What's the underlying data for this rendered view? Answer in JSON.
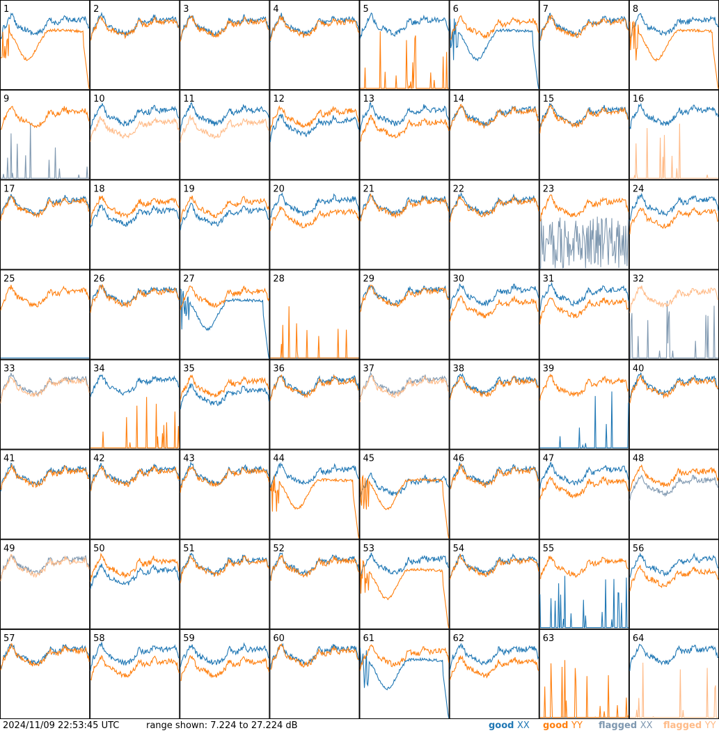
{
  "chart_data": {
    "type": "line",
    "layout": "8x8 small multiples",
    "timestamp": "2024/11/09 22:53:45 UTC",
    "range_label": "range shown: 7.224 to 27.224 dB",
    "ylim": [
      7.224,
      27.224
    ],
    "legend": [
      {
        "word": "good",
        "pol": "XX",
        "color": "#1f77b4"
      },
      {
        "word": "good",
        "pol": "YY",
        "color": "#ff7f0e"
      },
      {
        "word": "flagged",
        "pol": "XX",
        "color": "#7f98b0"
      },
      {
        "word": "flagged",
        "pol": "YY",
        "color": "#ffbb88"
      }
    ],
    "colors": {
      "good_xx": "#1f77b4",
      "good_yy": "#ff7f0e",
      "flagged_xx": "#7f98b0",
      "flagged_yy": "#ffbb88"
    },
    "panels": [
      {
        "label": "1",
        "xx": "good",
        "yy": "good",
        "xx_shape": "normal",
        "yy_shape": "dip"
      },
      {
        "label": "2",
        "xx": "good",
        "yy": "good",
        "xx_shape": "normal",
        "yy_shape": "normal"
      },
      {
        "label": "3",
        "xx": "good",
        "yy": "good",
        "xx_shape": "normal",
        "yy_shape": "normal"
      },
      {
        "label": "4",
        "xx": "good",
        "yy": "good",
        "xx_shape": "normal",
        "yy_shape": "normal"
      },
      {
        "label": "5",
        "xx": "good",
        "yy": "good",
        "xx_shape": "normal",
        "yy_shape": "spikes"
      },
      {
        "label": "6",
        "xx": "good",
        "yy": "good",
        "xx_shape": "dip",
        "yy_shape": "normal"
      },
      {
        "label": "7",
        "xx": "good",
        "yy": "good",
        "xx_shape": "normal",
        "yy_shape": "normal"
      },
      {
        "label": "8",
        "xx": "good",
        "yy": "good",
        "xx_shape": "normal",
        "yy_shape": "dip"
      },
      {
        "label": "9",
        "xx": "flagged",
        "yy": "good",
        "xx_shape": "spikes",
        "yy_shape": "normal"
      },
      {
        "label": "10",
        "xx": "good",
        "yy": "flagged",
        "xx_shape": "normal",
        "yy_shape": "low"
      },
      {
        "label": "11",
        "xx": "good",
        "yy": "flagged",
        "xx_shape": "normal",
        "yy_shape": "low"
      },
      {
        "label": "12",
        "xx": "good",
        "yy": "good",
        "xx_shape": "low",
        "yy_shape": "normal"
      },
      {
        "label": "13",
        "xx": "good",
        "yy": "good",
        "xx_shape": "normal",
        "yy_shape": "low"
      },
      {
        "label": "14",
        "xx": "good",
        "yy": "good",
        "xx_shape": "normal",
        "yy_shape": "normal"
      },
      {
        "label": "15",
        "xx": "good",
        "yy": "good",
        "xx_shape": "normal",
        "yy_shape": "normal"
      },
      {
        "label": "16",
        "xx": "good",
        "yy": "flagged",
        "xx_shape": "normal",
        "yy_shape": "spikes"
      },
      {
        "label": "17",
        "xx": "good",
        "yy": "good",
        "xx_shape": "normal",
        "yy_shape": "normal"
      },
      {
        "label": "18",
        "xx": "good",
        "yy": "good",
        "xx_shape": "low",
        "yy_shape": "normal"
      },
      {
        "label": "19",
        "xx": "good",
        "yy": "good",
        "xx_shape": "low",
        "yy_shape": "normal"
      },
      {
        "label": "20",
        "xx": "good",
        "yy": "good",
        "xx_shape": "normal",
        "yy_shape": "low"
      },
      {
        "label": "21",
        "xx": "good",
        "yy": "good",
        "xx_shape": "normal",
        "yy_shape": "normal"
      },
      {
        "label": "22",
        "xx": "good",
        "yy": "good",
        "xx_shape": "normal",
        "yy_shape": "normal"
      },
      {
        "label": "23",
        "xx": "flagged",
        "yy": "good",
        "xx_shape": "noisy",
        "yy_shape": "normal"
      },
      {
        "label": "24",
        "xx": "good",
        "yy": "good",
        "xx_shape": "normal",
        "yy_shape": "low"
      },
      {
        "label": "25",
        "xx": "good",
        "yy": "good",
        "xx_shape": "flat",
        "yy_shape": "normal"
      },
      {
        "label": "26",
        "xx": "good",
        "yy": "good",
        "xx_shape": "normal",
        "yy_shape": "normal"
      },
      {
        "label": "27",
        "xx": "good",
        "yy": "good",
        "xx_shape": "dip",
        "yy_shape": "normal"
      },
      {
        "label": "28",
        "xx": "good",
        "yy": "good",
        "xx_shape": "flat",
        "yy_shape": "spikes"
      },
      {
        "label": "29",
        "xx": "good",
        "yy": "good",
        "xx_shape": "normal",
        "yy_shape": "normal"
      },
      {
        "label": "30",
        "xx": "good",
        "yy": "good",
        "xx_shape": "normal",
        "yy_shape": "low"
      },
      {
        "label": "31",
        "xx": "good",
        "yy": "good",
        "xx_shape": "normal",
        "yy_shape": "low"
      },
      {
        "label": "32",
        "xx": "flagged",
        "yy": "flagged",
        "xx_shape": "spikes",
        "yy_shape": "normal"
      },
      {
        "label": "33",
        "xx": "flagged",
        "yy": "flagged",
        "xx_shape": "normal",
        "yy_shape": "normal"
      },
      {
        "label": "34",
        "xx": "good",
        "yy": "good",
        "xx_shape": "normal",
        "yy_shape": "spikes"
      },
      {
        "label": "35",
        "xx": "good",
        "yy": "good",
        "xx_shape": "low",
        "yy_shape": "normal"
      },
      {
        "label": "36",
        "xx": "good",
        "yy": "good",
        "xx_shape": "normal",
        "yy_shape": "normal"
      },
      {
        "label": "37",
        "xx": "flagged",
        "yy": "flagged",
        "xx_shape": "normal",
        "yy_shape": "normal"
      },
      {
        "label": "38",
        "xx": "good",
        "yy": "good",
        "xx_shape": "normal",
        "yy_shape": "normal"
      },
      {
        "label": "39",
        "xx": "good",
        "yy": "good",
        "xx_shape": "spikes",
        "yy_shape": "normal"
      },
      {
        "label": "40",
        "xx": "good",
        "yy": "good",
        "xx_shape": "normal",
        "yy_shape": "normal"
      },
      {
        "label": "41",
        "xx": "good",
        "yy": "good",
        "xx_shape": "normal",
        "yy_shape": "normal"
      },
      {
        "label": "42",
        "xx": "good",
        "yy": "good",
        "xx_shape": "normal",
        "yy_shape": "normal"
      },
      {
        "label": "43",
        "xx": "good",
        "yy": "good",
        "xx_shape": "normal",
        "yy_shape": "normal"
      },
      {
        "label": "44",
        "xx": "good",
        "yy": "good",
        "xx_shape": "normal",
        "yy_shape": "dip"
      },
      {
        "label": "45",
        "xx": "good",
        "yy": "good",
        "xx_shape": "low",
        "yy_shape": "dip"
      },
      {
        "label": "46",
        "xx": "good",
        "yy": "good",
        "xx_shape": "normal",
        "yy_shape": "normal"
      },
      {
        "label": "47",
        "xx": "good",
        "yy": "good",
        "xx_shape": "normal",
        "yy_shape": "low"
      },
      {
        "label": "48",
        "xx": "flagged",
        "yy": "good",
        "xx_shape": "low",
        "yy_shape": "normal"
      },
      {
        "label": "49",
        "xx": "flagged",
        "yy": "flagged",
        "xx_shape": "normal",
        "yy_shape": "normal"
      },
      {
        "label": "50",
        "xx": "good",
        "yy": "good",
        "xx_shape": "low",
        "yy_shape": "normal"
      },
      {
        "label": "51",
        "xx": "good",
        "yy": "good",
        "xx_shape": "normal",
        "yy_shape": "normal"
      },
      {
        "label": "52",
        "xx": "good",
        "yy": "good",
        "xx_shape": "normal",
        "yy_shape": "normal"
      },
      {
        "label": "53",
        "xx": "good",
        "yy": "good",
        "xx_shape": "normal",
        "yy_shape": "dip"
      },
      {
        "label": "54",
        "xx": "good",
        "yy": "good",
        "xx_shape": "normal",
        "yy_shape": "normal"
      },
      {
        "label": "55",
        "xx": "good",
        "yy": "good",
        "xx_shape": "spikes",
        "yy_shape": "normal"
      },
      {
        "label": "56",
        "xx": "good",
        "yy": "good",
        "xx_shape": "normal",
        "yy_shape": "low"
      },
      {
        "label": "57",
        "xx": "good",
        "yy": "good",
        "xx_shape": "normal",
        "yy_shape": "normal"
      },
      {
        "label": "58",
        "xx": "good",
        "yy": "good",
        "xx_shape": "normal",
        "yy_shape": "low"
      },
      {
        "label": "59",
        "xx": "good",
        "yy": "good",
        "xx_shape": "normal",
        "yy_shape": "low"
      },
      {
        "label": "60",
        "xx": "good",
        "yy": "good",
        "xx_shape": "normal",
        "yy_shape": "normal"
      },
      {
        "label": "61",
        "xx": "good",
        "yy": "good",
        "xx_shape": "dip",
        "yy_shape": "normal"
      },
      {
        "label": "62",
        "xx": "good",
        "yy": "good",
        "xx_shape": "normal",
        "yy_shape": "low"
      },
      {
        "label": "63",
        "xx": "good",
        "yy": "good",
        "xx_shape": "flat",
        "yy_shape": "spikes"
      },
      {
        "label": "64",
        "xx": "good",
        "yy": "flagged",
        "xx_shape": "normal",
        "yy_shape": "spikes"
      }
    ]
  }
}
